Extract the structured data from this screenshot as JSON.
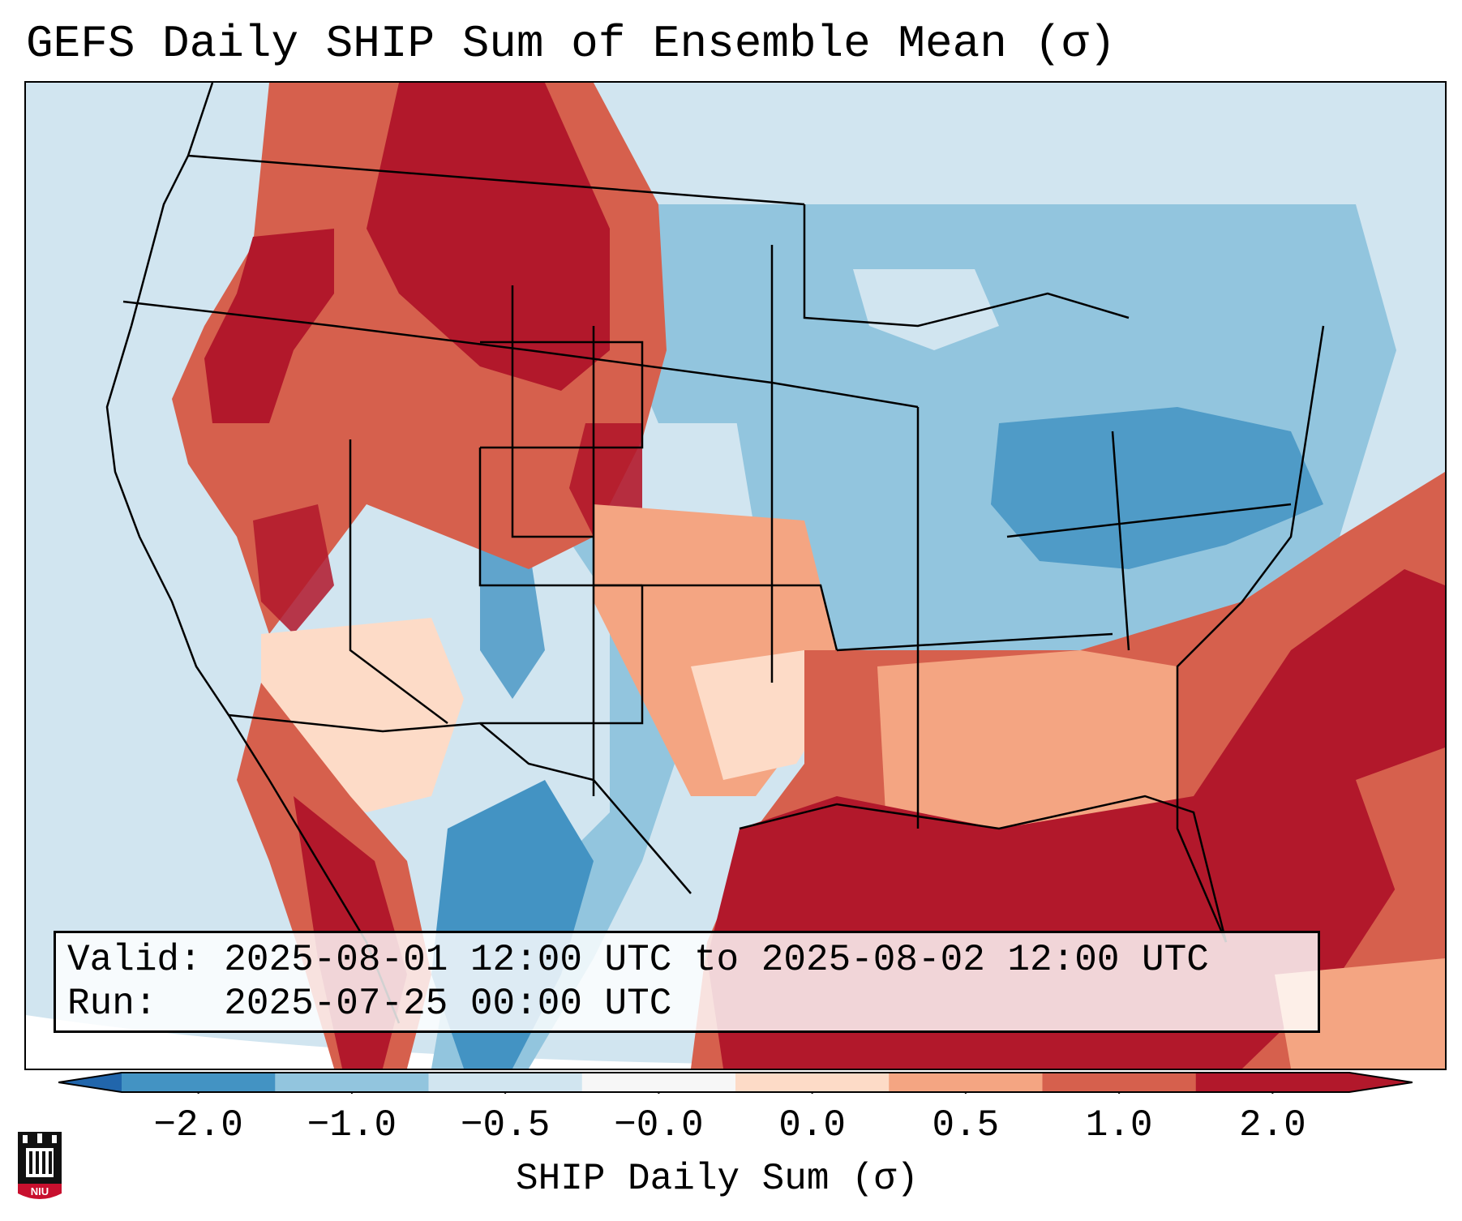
{
  "title": "GEFS Daily SHIP Sum of Ensemble Mean (σ)",
  "valid_label": "Valid:",
  "valid_text": "2025-08-01 12:00 UTC to 2025-08-02 12:00 UTC",
  "run_label": "Run:",
  "run_text": "2025-07-25 00:00 UTC",
  "colorbar": {
    "label": "SHIP Daily Sum (σ)",
    "ticks": [
      "−2.0",
      "−1.0",
      "−0.5",
      "−0.0",
      "0.0",
      "0.5",
      "1.0",
      "2.0"
    ],
    "colors": [
      "#4393c3",
      "#92c5de",
      "#d1e5f0",
      "#f7f7f7",
      "#fddbc7",
      "#f4a582",
      "#d6604d",
      "#b2182b"
    ],
    "under_color": "#2166ac",
    "over_color": "#b2182b"
  },
  "logo": {
    "text": "NIU",
    "icon": "university-building-icon"
  }
}
